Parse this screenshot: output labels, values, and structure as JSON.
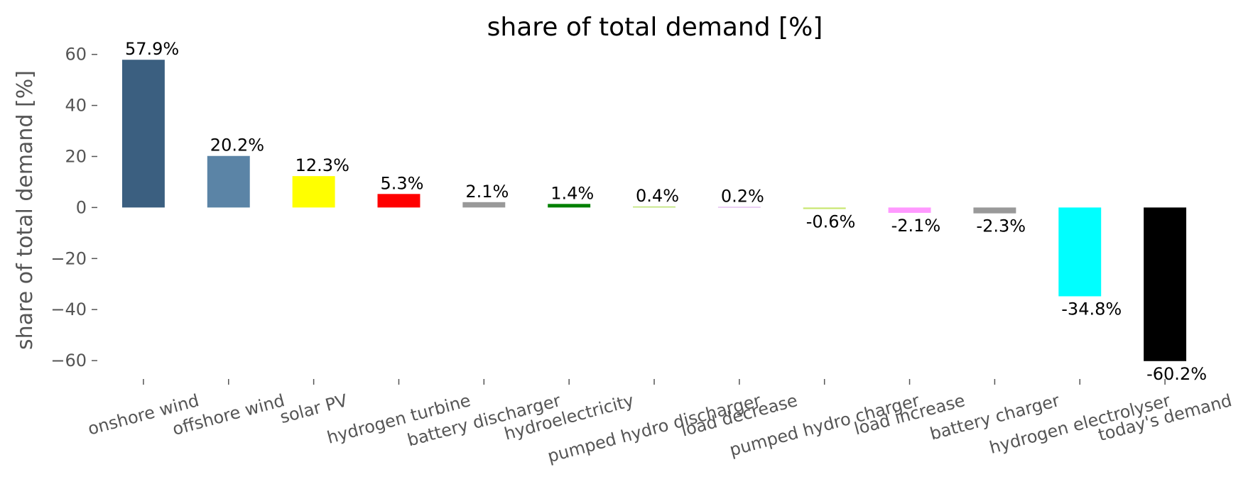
{
  "chart_data": {
    "type": "bar",
    "title": "share of total demand [%]",
    "ylabel": "share of total demand [%]",
    "categories": [
      "onshore wind",
      "offshore wind",
      "solar PV",
      "hydrogen turbine",
      "battery discharger",
      "hydroelectricity",
      "pumped hydro discharger",
      "load decrease",
      "pumped hydro charger",
      "load increase",
      "battery charger",
      "hydrogen electrolyser",
      "today's demand"
    ],
    "values": [
      57.9,
      20.2,
      12.3,
      5.3,
      2.1,
      1.4,
      0.4,
      0.2,
      -0.6,
      -2.1,
      -2.3,
      -34.8,
      -60.2
    ],
    "value_labels": [
      "57.9%",
      "20.2%",
      "12.3%",
      "5.3%",
      "2.1%",
      "1.4%",
      "0.4%",
      "0.2%",
      "-0.6%",
      "-2.1%",
      "-2.3%",
      "-34.8%",
      "-60.2%"
    ],
    "colors": [
      "#3b5f80",
      "#5b84a6",
      "#ffff00",
      "#ff0000",
      "#999999",
      "#008000",
      "#b8e06a",
      "#c77ce0",
      "#c8e66e",
      "#ff99ff",
      "#999999",
      "#00ffff",
      "#000000"
    ],
    "ylim": [
      -66.1,
      63.8
    ],
    "yticks": [
      60,
      40,
      20,
      0,
      -20,
      -40,
      -60
    ],
    "ytick_labels": [
      "60",
      "40",
      "20",
      "0",
      "−20",
      "−40",
      "−60"
    ],
    "grid": false
  }
}
